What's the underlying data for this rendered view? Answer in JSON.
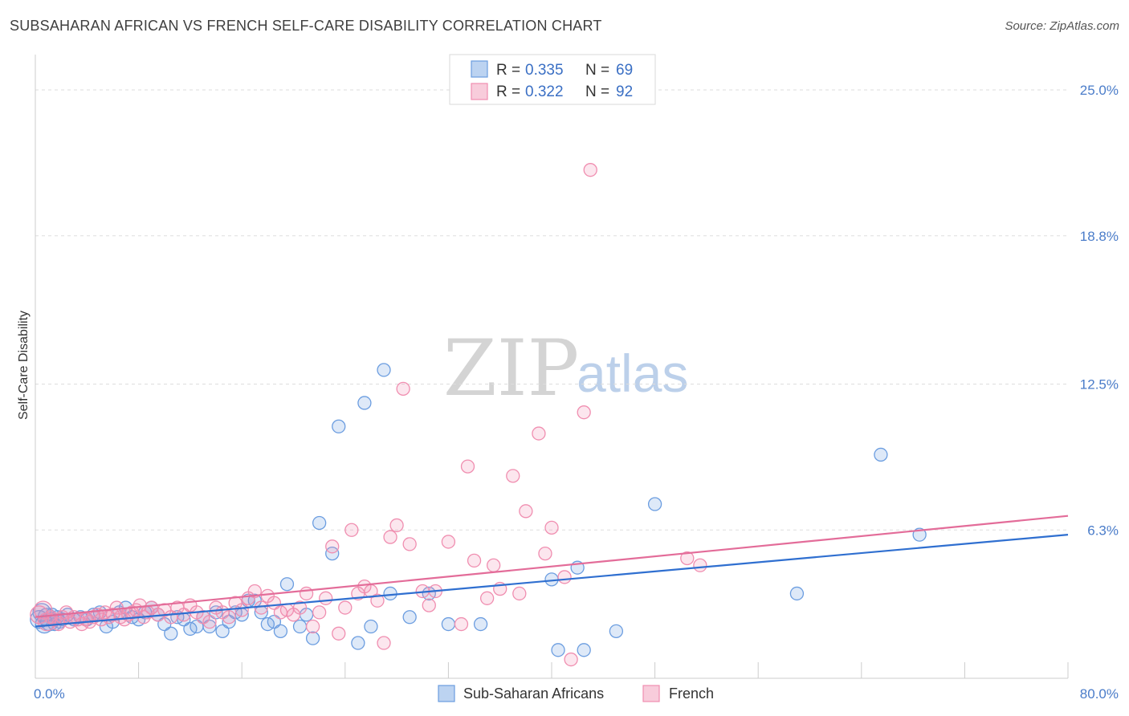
{
  "title": "SUBSAHARAN AFRICAN VS FRENCH SELF-CARE DISABILITY CORRELATION CHART",
  "source": "Source: ZipAtlas.com",
  "watermark": {
    "zip": "ZIP",
    "atlas": "atlas"
  },
  "chart_data": {
    "type": "scatter",
    "ylabel": "Self-Care Disability",
    "xlim": [
      0,
      80
    ],
    "ylim": [
      0,
      26.5
    ],
    "x_tick_labels": [
      {
        "value": 0,
        "label": "0.0%"
      },
      {
        "value": 80,
        "label": "80.0%"
      }
    ],
    "y_ticks": [
      {
        "value": 6.3,
        "label": "6.3%"
      },
      {
        "value": 12.5,
        "label": "12.5%"
      },
      {
        "value": 18.8,
        "label": "18.8%"
      },
      {
        "value": 25.0,
        "label": "25.0%"
      }
    ],
    "grid": true,
    "legend": {
      "position": "top-center",
      "entries": [
        {
          "r_label": "R =",
          "r_value": "0.335",
          "n_label": "N =",
          "n_value": "69"
        },
        {
          "r_label": "R =",
          "r_value": "0.322",
          "n_label": "N =",
          "n_value": "92"
        }
      ]
    },
    "series": [
      {
        "name": "Sub-Saharan Africans",
        "color": "#6b9de0",
        "line_color": "#2f6fd0",
        "trend": {
          "x0": 0,
          "y0": 2.2,
          "x1": 80,
          "y1": 6.1
        },
        "points": [
          [
            0.3,
            2.5
          ],
          [
            0.5,
            2.8
          ],
          [
            0.7,
            2.3
          ],
          [
            0.9,
            2.6
          ],
          [
            1.1,
            2.4
          ],
          [
            1.3,
            2.7
          ],
          [
            1.5,
            2.3
          ],
          [
            1.7,
            2.6
          ],
          [
            1.9,
            2.4
          ],
          [
            2.1,
            2.5
          ],
          [
            2.5,
            2.7
          ],
          [
            3.0,
            2.5
          ],
          [
            3.5,
            2.6
          ],
          [
            4.0,
            2.5
          ],
          [
            4.5,
            2.7
          ],
          [
            5.0,
            2.8
          ],
          [
            5.5,
            2.2
          ],
          [
            6.0,
            2.4
          ],
          [
            6.5,
            2.8
          ],
          [
            7.0,
            3.0
          ],
          [
            7.5,
            2.6
          ],
          [
            8.0,
            2.5
          ],
          [
            8.5,
            2.8
          ],
          [
            9.0,
            3.0
          ],
          [
            9.5,
            2.7
          ],
          [
            10.0,
            2.3
          ],
          [
            10.5,
            1.9
          ],
          [
            11.0,
            2.6
          ],
          [
            11.5,
            2.5
          ],
          [
            12.0,
            2.1
          ],
          [
            12.5,
            2.2
          ],
          [
            13.0,
            2.6
          ],
          [
            13.5,
            2.2
          ],
          [
            14.0,
            2.8
          ],
          [
            14.5,
            2.0
          ],
          [
            15.0,
            2.4
          ],
          [
            15.5,
            2.8
          ],
          [
            16.0,
            2.7
          ],
          [
            16.5,
            3.3
          ],
          [
            17.0,
            3.3
          ],
          [
            17.5,
            2.8
          ],
          [
            18.0,
            2.3
          ],
          [
            18.5,
            2.4
          ],
          [
            19.0,
            2.0
          ],
          [
            19.5,
            4.0
          ],
          [
            20.5,
            2.2
          ],
          [
            21.0,
            2.7
          ],
          [
            21.5,
            1.7
          ],
          [
            22.0,
            6.6
          ],
          [
            23.0,
            5.3
          ],
          [
            25.0,
            1.5
          ],
          [
            26.0,
            2.2
          ],
          [
            27.5,
            3.6
          ],
          [
            29.0,
            2.6
          ],
          [
            30.5,
            3.6
          ],
          [
            32.0,
            2.3
          ],
          [
            34.5,
            2.3
          ],
          [
            40.0,
            4.2
          ],
          [
            42.0,
            4.7
          ],
          [
            45.0,
            2.0
          ],
          [
            48.0,
            7.4
          ],
          [
            59.0,
            3.6
          ],
          [
            65.5,
            9.5
          ],
          [
            68.5,
            6.1
          ],
          [
            23.5,
            10.7
          ],
          [
            25.5,
            11.7
          ],
          [
            27.0,
            13.1
          ],
          [
            40.5,
            1.2
          ],
          [
            42.5,
            1.2
          ]
        ]
      },
      {
        "name": "French",
        "color": "#f08eb0",
        "line_color": "#e36c99",
        "trend": {
          "x0": 0,
          "y0": 2.6,
          "x1": 80,
          "y1": 6.9
        },
        "points": [
          [
            0.3,
            2.7
          ],
          [
            0.6,
            2.9
          ],
          [
            0.9,
            2.4
          ],
          [
            1.2,
            2.6
          ],
          [
            1.5,
            2.5
          ],
          [
            1.8,
            2.3
          ],
          [
            2.1,
            2.6
          ],
          [
            2.4,
            2.8
          ],
          [
            2.7,
            2.4
          ],
          [
            3.0,
            2.6
          ],
          [
            3.3,
            2.5
          ],
          [
            3.6,
            2.3
          ],
          [
            3.9,
            2.5
          ],
          [
            4.2,
            2.4
          ],
          [
            4.5,
            2.6
          ],
          [
            4.8,
            2.7
          ],
          [
            5.1,
            2.5
          ],
          [
            5.4,
            2.8
          ],
          [
            5.7,
            2.6
          ],
          [
            6.0,
            2.7
          ],
          [
            6.3,
            3.0
          ],
          [
            6.6,
            2.6
          ],
          [
            6.9,
            2.5
          ],
          [
            7.2,
            2.7
          ],
          [
            7.5,
            2.8
          ],
          [
            7.8,
            2.9
          ],
          [
            8.1,
            3.1
          ],
          [
            8.4,
            2.6
          ],
          [
            8.7,
            2.8
          ],
          [
            9.0,
            3.0
          ],
          [
            9.5,
            2.7
          ],
          [
            10.0,
            2.9
          ],
          [
            10.5,
            2.6
          ],
          [
            11.0,
            3.0
          ],
          [
            11.5,
            2.7
          ],
          [
            12.0,
            3.1
          ],
          [
            12.5,
            2.8
          ],
          [
            13.0,
            2.6
          ],
          [
            13.5,
            2.4
          ],
          [
            14.0,
            3.0
          ],
          [
            14.5,
            2.8
          ],
          [
            15.0,
            2.6
          ],
          [
            15.5,
            3.2
          ],
          [
            16.0,
            2.9
          ],
          [
            16.5,
            3.4
          ],
          [
            17.0,
            3.7
          ],
          [
            17.5,
            3.0
          ],
          [
            18.0,
            3.5
          ],
          [
            18.5,
            3.2
          ],
          [
            19.0,
            2.8
          ],
          [
            19.5,
            2.9
          ],
          [
            20.0,
            2.7
          ],
          [
            20.5,
            3.0
          ],
          [
            21.0,
            3.6
          ],
          [
            21.5,
            2.2
          ],
          [
            22.0,
            2.8
          ],
          [
            22.5,
            3.4
          ],
          [
            23.0,
            5.6
          ],
          [
            23.5,
            1.9
          ],
          [
            24.0,
            3.0
          ],
          [
            24.5,
            6.3
          ],
          [
            25.0,
            3.6
          ],
          [
            25.5,
            3.9
          ],
          [
            26.0,
            3.7
          ],
          [
            26.5,
            3.3
          ],
          [
            27.0,
            1.5
          ],
          [
            27.5,
            6.0
          ],
          [
            28.0,
            6.5
          ],
          [
            29.0,
            5.7
          ],
          [
            30.0,
            3.7
          ],
          [
            30.5,
            3.1
          ],
          [
            31.0,
            3.7
          ],
          [
            32.0,
            5.8
          ],
          [
            33.0,
            2.3
          ],
          [
            33.5,
            9.0
          ],
          [
            34.0,
            5.0
          ],
          [
            35.0,
            3.4
          ],
          [
            35.5,
            4.8
          ],
          [
            36.0,
            3.8
          ],
          [
            37.0,
            8.6
          ],
          [
            37.5,
            3.6
          ],
          [
            38.0,
            7.1
          ],
          [
            39.0,
            10.4
          ],
          [
            39.5,
            5.3
          ],
          [
            40.0,
            6.4
          ],
          [
            41.0,
            4.3
          ],
          [
            41.5,
            0.8
          ],
          [
            42.5,
            11.3
          ],
          [
            43.0,
            21.6
          ],
          [
            50.5,
            5.1
          ],
          [
            28.5,
            12.3
          ],
          [
            51.5,
            4.8
          ]
        ]
      }
    ]
  }
}
